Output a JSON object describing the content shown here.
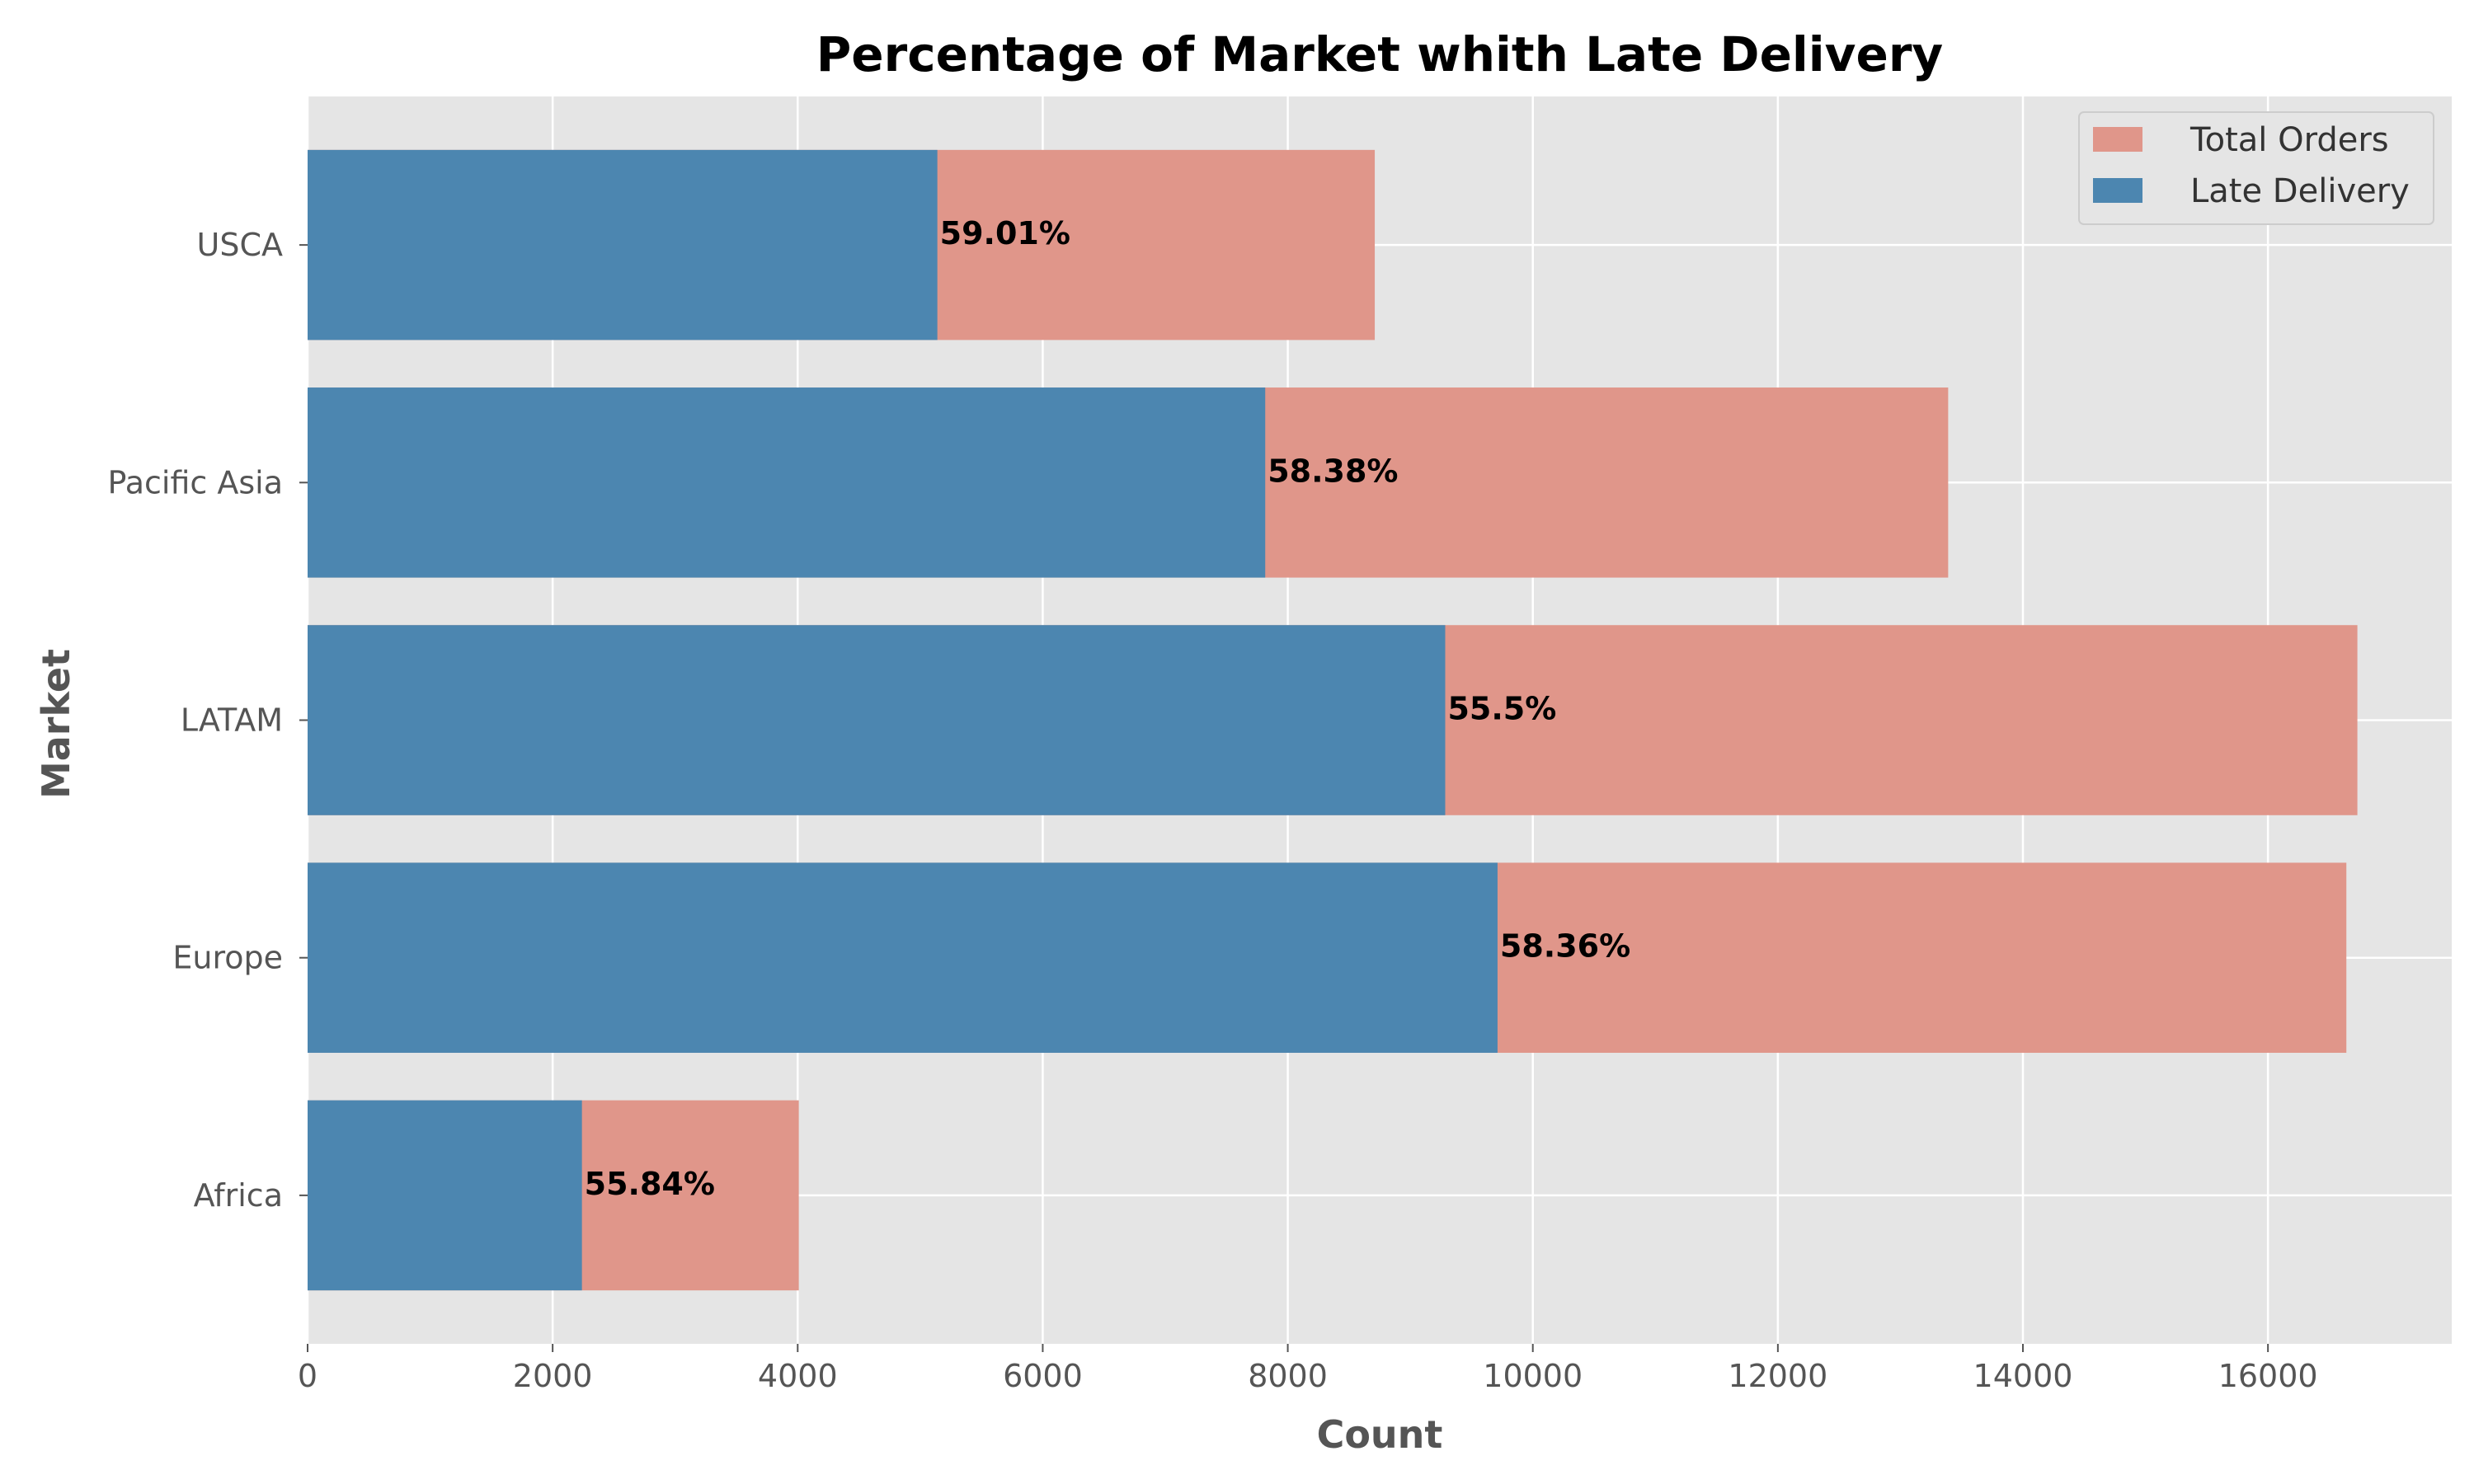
{
  "chart_data": {
    "type": "bar",
    "orientation": "horizontal",
    "title": "Percentage of Market whith Late Delivery",
    "xlabel": "Count",
    "ylabel": "Market",
    "categories": [
      "Africa",
      "Europe",
      "LATAM",
      "Pacific Asia",
      "USCA"
    ],
    "series": [
      {
        "name": "Total Orders",
        "values": [
          4009,
          16640,
          16730,
          13390,
          8710
        ]
      },
      {
        "name": "Late Delivery",
        "values": [
          2239,
          9712,
          9285,
          7816,
          5140
        ]
      }
    ],
    "data_labels": [
      "55.84%",
      "58.36%",
      "55.5%",
      "58.38%",
      "59.01%"
    ],
    "xlim": [
      0,
      17500
    ],
    "xticks": [
      0,
      2000,
      4000,
      6000,
      8000,
      10000,
      12000,
      14000,
      16000
    ],
    "grid": true,
    "legend_position": "top-right",
    "colors": {
      "total_orders": "#E0968A",
      "late_delivery": "#4C86B0",
      "plot_background": "#E5E5E5",
      "grid": "#FFFFFF"
    }
  }
}
